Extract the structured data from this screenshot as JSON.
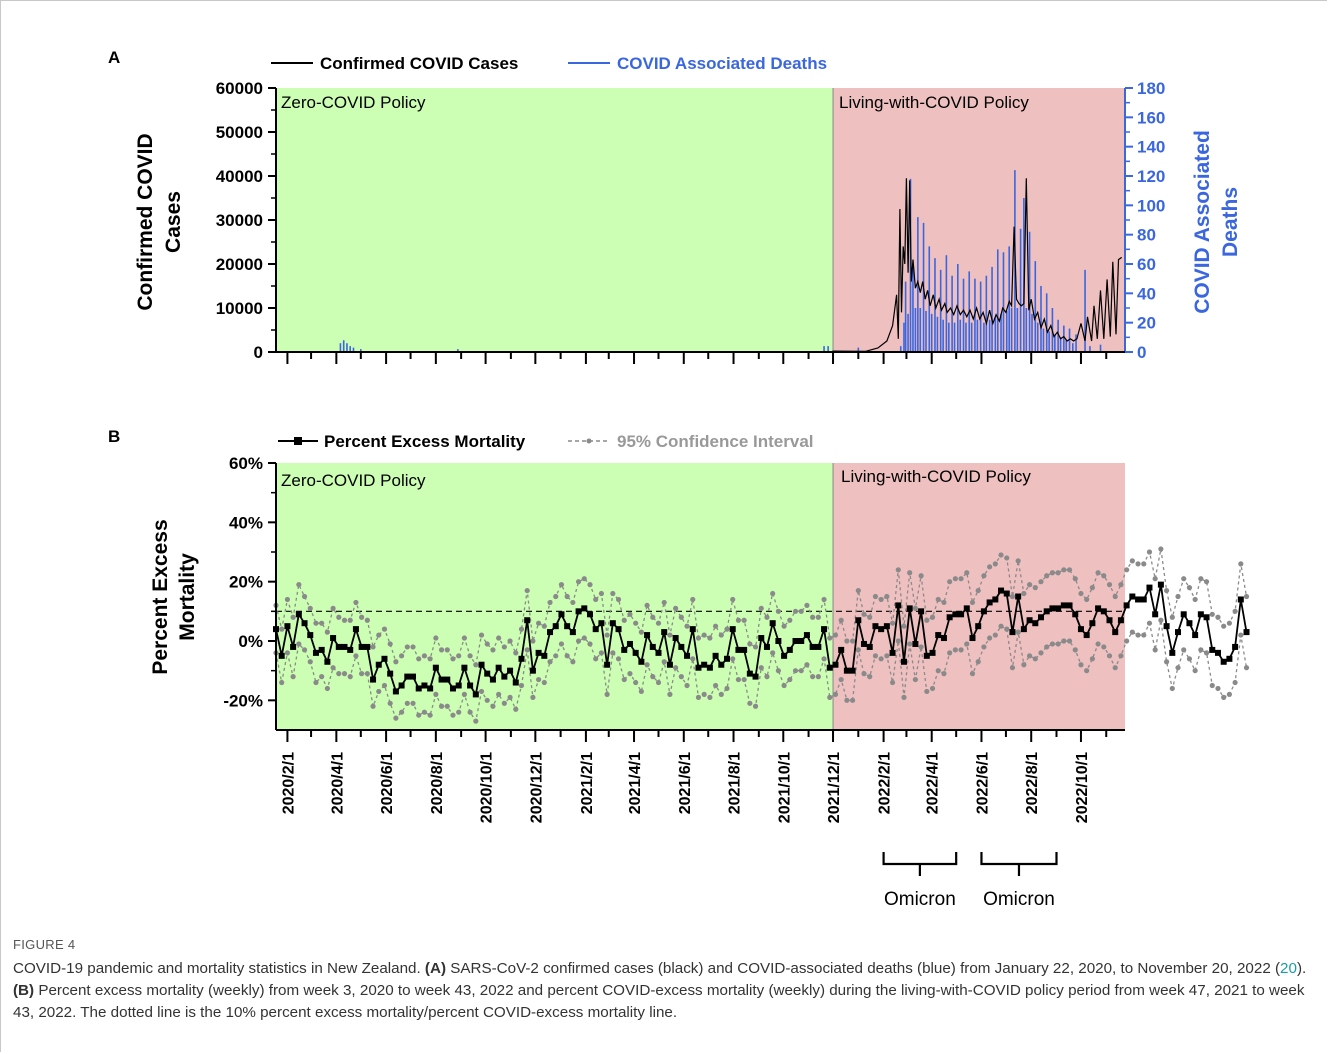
{
  "figure": {
    "label": "FIGURE 4",
    "caption": {
      "intro": "COVID-19 pandemic and mortality statistics in New Zealand. ",
      "a_tag": "(A)",
      "a_text_1": " SARS-CoV-2 confirmed cases (black) and COVID-associated deaths (blue) from January 22, 2020, to November 20, 2022 (",
      "a_ref": "20",
      "a_text_2": "). ",
      "b_tag": "(B)",
      "b_text": " Percent excess mortality (weekly) from week 3, 2020 to week 43, 2022 and percent COVID-excess mortality (weekly) during the living-with-COVID policy period from week 47, 2021 to week 43, 2022. The dotted line is the 10% percent excess mortality/percent COVID-excess mortality line."
    },
    "x_axis": {
      "tick_labels": [
        "2020/2/1",
        "2020/4/1",
        "2020/6/1",
        "2020/8/1",
        "2020/10/1",
        "2020/12/1",
        "2021/2/1",
        "2021/4/1",
        "2021/6/1",
        "2021/8/1",
        "2021/10/1",
        "2021/12/1",
        "2022/2/1",
        "2022/4/1",
        "2022/6/1",
        "2022/8/1",
        "2022/10/1"
      ],
      "domain": [
        "2020-01-18",
        "2022-11-24"
      ]
    },
    "annotations": {
      "omicron_1": {
        "label": "Omicron",
        "from": "2022-02-01",
        "to": "2022-05-01"
      },
      "omicron_2": {
        "label": "Omicron",
        "from": "2022-06-01",
        "to": "2022-09-01"
      }
    },
    "colors": {
      "zero_policy": "#ccffb3",
      "living_policy": "#efc0c0",
      "cases": "#000000",
      "deaths": "#3a66e0",
      "ci": "#8a8a8a"
    }
  },
  "chart_data": [
    {
      "panel": "A",
      "type": "bar",
      "panel_label": "A",
      "ylabel": "Confirmed COVID Cases",
      "ylabel_right": "COVID Associated Deaths",
      "ylim": [
        0,
        60000
      ],
      "yticks": [
        "0",
        "10000",
        "20000",
        "30000",
        "40000",
        "50000",
        "60000"
      ],
      "ylim_right": [
        0,
        180
      ],
      "yticks_right": [
        "0",
        "20",
        "40",
        "60",
        "80",
        "100",
        "120",
        "140",
        "160",
        "180"
      ],
      "legend": {
        "placement": "top",
        "cases": "Confirmed COVID Cases",
        "deaths": "COVID Associated Deaths"
      },
      "regions": [
        {
          "label": "Zero-COVID Policy",
          "from": "2020-01-18",
          "to": "2021-12-01"
        },
        {
          "label": "Living-with-COVID Policy",
          "from": "2021-12-01",
          "to": "2022-11-24"
        }
      ],
      "cases_series": [
        [
          "2021-12-01",
          200
        ],
        [
          "2022-01-10",
          150
        ],
        [
          "2022-01-25",
          900
        ],
        [
          "2022-02-05",
          2500
        ],
        [
          "2022-02-12",
          6000
        ],
        [
          "2022-02-17",
          13000
        ],
        [
          "2022-02-19",
          3000
        ],
        [
          "2022-02-21",
          32500
        ],
        [
          "2022-02-23",
          9000
        ],
        [
          "2022-02-25",
          24000
        ],
        [
          "2022-02-27",
          20000
        ],
        [
          "2022-03-01",
          39500
        ],
        [
          "2022-03-03",
          18000
        ],
        [
          "2022-03-05",
          39000
        ],
        [
          "2022-03-07",
          16000
        ],
        [
          "2022-03-09",
          21000
        ],
        [
          "2022-03-12",
          14500
        ],
        [
          "2022-03-15",
          16000
        ],
        [
          "2022-03-18",
          13500
        ],
        [
          "2022-03-21",
          16000
        ],
        [
          "2022-03-24",
          12000
        ],
        [
          "2022-03-27",
          14000
        ],
        [
          "2022-03-30",
          10500
        ],
        [
          "2022-04-03",
          13000
        ],
        [
          "2022-04-06",
          10000
        ],
        [
          "2022-04-10",
          12000
        ],
        [
          "2022-04-13",
          9500
        ],
        [
          "2022-04-17",
          11000
        ],
        [
          "2022-04-20",
          9000
        ],
        [
          "2022-04-24",
          10000
        ],
        [
          "2022-04-28",
          8500
        ],
        [
          "2022-05-02",
          10500
        ],
        [
          "2022-05-06",
          8500
        ],
        [
          "2022-05-10",
          9500
        ],
        [
          "2022-05-14",
          8000
        ],
        [
          "2022-05-18",
          9500
        ],
        [
          "2022-05-22",
          7500
        ],
        [
          "2022-05-26",
          10000
        ],
        [
          "2022-05-30",
          7500
        ],
        [
          "2022-06-03",
          9000
        ],
        [
          "2022-06-07",
          6500
        ],
        [
          "2022-06-11",
          9500
        ],
        [
          "2022-06-15",
          6500
        ],
        [
          "2022-06-19",
          8500
        ],
        [
          "2022-06-23",
          7000
        ],
        [
          "2022-06-27",
          10000
        ],
        [
          "2022-07-01",
          9000
        ],
        [
          "2022-07-05",
          11500
        ],
        [
          "2022-07-08",
          10500
        ],
        [
          "2022-07-11",
          28500
        ],
        [
          "2022-07-14",
          12000
        ],
        [
          "2022-07-17",
          11000
        ],
        [
          "2022-07-20",
          10500
        ],
        [
          "2022-07-23",
          11000
        ],
        [
          "2022-07-26",
          39500
        ],
        [
          "2022-07-29",
          9500
        ],
        [
          "2022-08-01",
          12000
        ],
        [
          "2022-08-05",
          7500
        ],
        [
          "2022-08-09",
          9000
        ],
        [
          "2022-08-13",
          5500
        ],
        [
          "2022-08-17",
          7500
        ],
        [
          "2022-08-21",
          4500
        ],
        [
          "2022-08-25",
          6000
        ],
        [
          "2022-08-29",
          3500
        ],
        [
          "2022-09-02",
          4500
        ],
        [
          "2022-09-06",
          3000
        ],
        [
          "2022-09-10",
          3500
        ],
        [
          "2022-09-14",
          2500
        ],
        [
          "2022-09-18",
          3000
        ],
        [
          "2022-09-22",
          2500
        ],
        [
          "2022-09-26",
          3000
        ],
        [
          "2022-10-01",
          6500
        ],
        [
          "2022-10-06",
          2500
        ],
        [
          "2022-10-09",
          8000
        ],
        [
          "2022-10-14",
          2500
        ],
        [
          "2022-10-17",
          10500
        ],
        [
          "2022-10-21",
          3000
        ],
        [
          "2022-10-25",
          14000
        ],
        [
          "2022-10-29",
          3000
        ],
        [
          "2022-11-02",
          16500
        ],
        [
          "2022-11-06",
          3500
        ],
        [
          "2022-11-09",
          20500
        ],
        [
          "2022-11-13",
          4000
        ],
        [
          "2022-11-16",
          21000
        ],
        [
          "2022-11-20",
          21500
        ]
      ],
      "deaths_series": [
        [
          "2020-04-06",
          6
        ],
        [
          "2020-04-10",
          8
        ],
        [
          "2020-04-14",
          6
        ],
        [
          "2020-04-18",
          4
        ],
        [
          "2020-04-22",
          3
        ],
        [
          "2020-05-01",
          2
        ],
        [
          "2020-08-28",
          2
        ],
        [
          "2021-11-20",
          4
        ],
        [
          "2021-11-25",
          4
        ],
        [
          "2022-01-01",
          3
        ],
        [
          "2022-02-22",
          4
        ],
        [
          "2022-02-26",
          20
        ],
        [
          "2022-02-28",
          48
        ],
        [
          "2022-03-03",
          26
        ],
        [
          "2022-03-06",
          118
        ],
        [
          "2022-03-09",
          58
        ],
        [
          "2022-03-12",
          30
        ],
        [
          "2022-03-15",
          92
        ],
        [
          "2022-03-18",
          30
        ],
        [
          "2022-03-22",
          88
        ],
        [
          "2022-03-25",
          28
        ],
        [
          "2022-03-29",
          72
        ],
        [
          "2022-04-01",
          26
        ],
        [
          "2022-04-05",
          64
        ],
        [
          "2022-04-08",
          24
        ],
        [
          "2022-04-12",
          56
        ],
        [
          "2022-04-15",
          22
        ],
        [
          "2022-04-19",
          66
        ],
        [
          "2022-04-22",
          20
        ],
        [
          "2022-04-26",
          52
        ],
        [
          "2022-04-29",
          20
        ],
        [
          "2022-05-03",
          60
        ],
        [
          "2022-05-06",
          22
        ],
        [
          "2022-05-10",
          50
        ],
        [
          "2022-05-13",
          20
        ],
        [
          "2022-05-17",
          55
        ],
        [
          "2022-05-20",
          20
        ],
        [
          "2022-05-24",
          50
        ],
        [
          "2022-05-27",
          22
        ],
        [
          "2022-05-31",
          48
        ],
        [
          "2022-06-04",
          20
        ],
        [
          "2022-06-07",
          52
        ],
        [
          "2022-06-11",
          22
        ],
        [
          "2022-06-14",
          58
        ],
        [
          "2022-06-18",
          24
        ],
        [
          "2022-06-21",
          70
        ],
        [
          "2022-06-25",
          26
        ],
        [
          "2022-06-28",
          68
        ],
        [
          "2022-07-02",
          28
        ],
        [
          "2022-07-05",
          72
        ],
        [
          "2022-07-08",
          30
        ],
        [
          "2022-07-12",
          124
        ],
        [
          "2022-07-15",
          30
        ],
        [
          "2022-07-19",
          84
        ],
        [
          "2022-07-23",
          105
        ],
        [
          "2022-07-26",
          30
        ],
        [
          "2022-07-30",
          82
        ],
        [
          "2022-08-02",
          26
        ],
        [
          "2022-08-06",
          62
        ],
        [
          "2022-08-09",
          20
        ],
        [
          "2022-08-13",
          45
        ],
        [
          "2022-08-16",
          16
        ],
        [
          "2022-08-20",
          40
        ],
        [
          "2022-08-23",
          14
        ],
        [
          "2022-08-27",
          30
        ],
        [
          "2022-08-30",
          12
        ],
        [
          "2022-09-03",
          22
        ],
        [
          "2022-09-06",
          10
        ],
        [
          "2022-09-10",
          18
        ],
        [
          "2022-09-13",
          8
        ],
        [
          "2022-09-17",
          16
        ],
        [
          "2022-09-21",
          6
        ],
        [
          "2022-09-25",
          12
        ],
        [
          "2022-10-06",
          56
        ],
        [
          "2022-10-12",
          4
        ],
        [
          "2022-10-25",
          5
        ]
      ]
    },
    {
      "panel": "B",
      "type": "line",
      "panel_label": "B",
      "ylabel": "Percent Excess Mortality",
      "ylim": [
        -30,
        60
      ],
      "yticks": [
        "-20%",
        "0%",
        "20%",
        "40%",
        "60%"
      ],
      "ytick_values": [
        -20,
        0,
        20,
        40,
        60
      ],
      "threshold": 10,
      "legend": {
        "placement": "top",
        "series": "Percent Excess Mortality",
        "ci": "95% Confidence Interval"
      },
      "regions": [
        {
          "label": "Zero-COVID Policy",
          "from": "2020-01-18",
          "to": "2021-12-01"
        },
        {
          "label": "Living-with-COVID Policy",
          "from": "2021-12-01",
          "to": "2022-11-24"
        }
      ],
      "series_start": "2020-01-18",
      "series_step_days": 7,
      "values": [
        4,
        -5,
        5,
        -2,
        9,
        6,
        2,
        -4,
        -3,
        -7,
        1,
        -2,
        -2,
        -3,
        4,
        -2,
        -2,
        -13,
        -8,
        -6,
        -11,
        -17,
        -15,
        -12,
        -12,
        -16,
        -15,
        -16,
        -9,
        -13,
        -13,
        -16,
        -15,
        -9,
        -15,
        -18,
        -8,
        -11,
        -13,
        -9,
        -12,
        -10,
        -14,
        -6,
        7,
        -10,
        -4,
        -5,
        3,
        5,
        9,
        5,
        3,
        10,
        11,
        9,
        4,
        6,
        -8,
        6,
        4,
        -3,
        -1,
        -4,
        -7,
        2,
        -2,
        -4,
        3,
        -8,
        1,
        -2,
        -5,
        4,
        -9,
        -8,
        -9,
        -5,
        -8,
        -6,
        4,
        -3,
        -3,
        -11,
        -12,
        1,
        -2,
        6,
        0,
        -5,
        -3,
        0,
        0,
        2,
        -2,
        -2,
        4,
        -9,
        -8,
        -3,
        -10,
        -10,
        7,
        -1,
        -2,
        5,
        4,
        5,
        -4,
        12,
        -7,
        11,
        -1,
        10,
        -5,
        -4,
        2,
        1,
        8,
        9,
        9,
        11,
        1,
        5,
        10,
        13,
        14,
        17,
        16,
        3,
        15,
        4,
        7,
        6,
        8,
        10,
        11,
        11,
        12,
        12,
        9,
        4,
        2,
        6,
        11,
        10,
        7,
        3,
        7,
        12,
        15,
        14,
        14,
        18,
        9,
        19,
        5,
        -4,
        3,
        9,
        6,
        2,
        9,
        8,
        -3,
        -4,
        -7,
        -6,
        -2,
        14,
        3
      ],
      "ci_upper": [
        12,
        4,
        14,
        8,
        19,
        15,
        11,
        6,
        6,
        3,
        11,
        8,
        7,
        7,
        13,
        8,
        7,
        -2,
        2,
        4,
        -1,
        -7,
        -5,
        -2,
        -2,
        -6,
        -5,
        -6,
        1,
        -3,
        -3,
        -6,
        -5,
        1,
        -5,
        -8,
        2,
        -1,
        -3,
        1,
        -2,
        0,
        -4,
        4,
        17,
        0,
        6,
        5,
        13,
        15,
        19,
        15,
        13,
        20,
        21,
        19,
        14,
        16,
        2,
        16,
        14,
        7,
        9,
        6,
        3,
        12,
        8,
        6,
        13,
        2,
        11,
        8,
        5,
        14,
        1,
        2,
        1,
        5,
        2,
        4,
        14,
        7,
        7,
        -1,
        -2,
        11,
        8,
        16,
        10,
        5,
        7,
        10,
        10,
        12,
        8,
        8,
        14,
        1,
        2,
        7,
        0,
        0,
        17,
        9,
        8,
        15,
        14,
        15,
        6,
        24,
        5,
        23,
        11,
        22,
        7,
        8,
        14,
        13,
        20,
        21,
        21,
        23,
        13,
        17,
        22,
        25,
        26,
        29,
        28,
        15,
        27,
        16,
        19,
        18,
        20,
        22,
        23,
        23,
        24,
        24,
        21,
        16,
        14,
        18,
        23,
        22,
        19,
        15,
        19,
        24,
        27,
        26,
        26,
        30,
        21,
        31,
        17,
        8,
        15,
        21,
        18,
        14,
        21,
        20,
        9,
        8,
        5,
        6,
        10,
        26,
        15
      ],
      "ci_lower": [
        -4,
        -14,
        -4,
        -12,
        -1,
        -3,
        -7,
        -14,
        -12,
        -16,
        -9,
        -11,
        -11,
        -12,
        -5,
        -11,
        -11,
        -22,
        -17,
        -15,
        -21,
        -26,
        -24,
        -21,
        -21,
        -25,
        -24,
        -25,
        -18,
        -22,
        -22,
        -25,
        -24,
        -18,
        -24,
        -27,
        -17,
        -20,
        -22,
        -18,
        -21,
        -19,
        -23,
        -15,
        -3,
        -19,
        -13,
        -14,
        -7,
        -5,
        -1,
        -5,
        -7,
        0,
        1,
        -1,
        -6,
        -4,
        -18,
        -4,
        -6,
        -13,
        -11,
        -14,
        -17,
        -8,
        -12,
        -14,
        -7,
        -18,
        -9,
        -12,
        -15,
        -6,
        -19,
        -18,
        -19,
        -15,
        -18,
        -16,
        -6,
        -13,
        -13,
        -21,
        -22,
        -9,
        -12,
        -4,
        -10,
        -15,
        -13,
        -10,
        -10,
        -8,
        -12,
        -12,
        -6,
        -19,
        -18,
        -13,
        -20,
        -20,
        -3,
        -11,
        -12,
        -5,
        -6,
        -5,
        -14,
        0,
        -19,
        -1,
        -13,
        -2,
        -17,
        -16,
        -10,
        -11,
        -4,
        -3,
        -3,
        -1,
        -11,
        -7,
        -2,
        1,
        2,
        5,
        4,
        -9,
        3,
        -8,
        -5,
        -6,
        -4,
        -2,
        -1,
        -1,
        0,
        0,
        -3,
        -8,
        -10,
        -6,
        -1,
        -2,
        -5,
        -9,
        -5,
        0,
        3,
        2,
        2,
        6,
        -3,
        7,
        -7,
        -16,
        -9,
        -3,
        -6,
        -10,
        -3,
        -4,
        -15,
        -16,
        -19,
        -18,
        -14,
        2,
        -9
      ]
    }
  ]
}
